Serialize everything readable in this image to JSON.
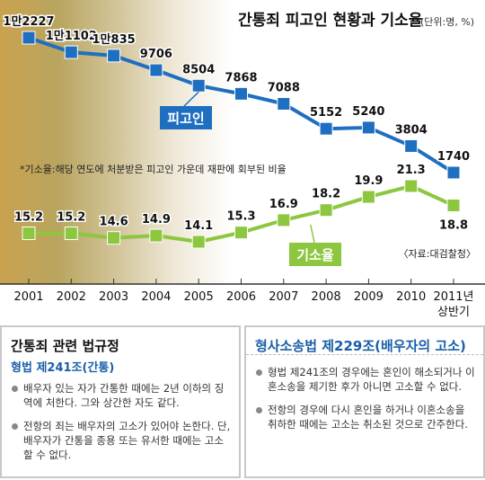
{
  "chart_data": {
    "type": "line",
    "title": "간통죄 피고인 현황과 기소율",
    "unit_note": "(단위:명, %)",
    "categories": [
      "2001",
      "2002",
      "2003",
      "2004",
      "2005",
      "2006",
      "2007",
      "2008",
      "2009",
      "2010",
      "2011년 상반기"
    ],
    "series": [
      {
        "name": "피고인",
        "color": "#1f6fc0",
        "values": [
          12227,
          11102,
          10835,
          9706,
          8504,
          7868,
          7088,
          5152,
          5240,
          3804,
          1740
        ],
        "labels": [
          "1만2227",
          "1만1102",
          "1만835",
          "9706",
          "8504",
          "7868",
          "7088",
          "5152",
          "5240",
          "3804",
          "1740"
        ]
      },
      {
        "name": "기소율",
        "color": "#8dc63f",
        "values": [
          15.2,
          15.2,
          14.6,
          14.9,
          14.1,
          15.3,
          16.9,
          18.2,
          19.9,
          21.3,
          18.8
        ],
        "labels": [
          "15.2",
          "15.2",
          "14.6",
          "14.9",
          "14.1",
          "15.3",
          "16.9",
          "18.2",
          "19.9",
          "21.3",
          "18.8"
        ]
      }
    ],
    "note": "*기소율:해당 연도에 처분받은 피고인 가운데 재판에 회부된 비율",
    "source": "〈자료:대검찰청〉",
    "grid": false
  },
  "panels": {
    "left": {
      "title": "간통죄 관련 법규정",
      "subtitle": "형법 제241조(간통)",
      "items": [
        "배우자 있는 자가 간통한 때에는 2년 이하의 징역에 처한다. 그와 상간한 자도 같다.",
        "전항의 죄는 배우자의 고소가 있어야 논한다. 단, 배우자가 간통을 종용 또는 유서한 때에는 고소할 수 없다."
      ]
    },
    "right": {
      "title": "형사소송법 제229조(배우자의 고소)",
      "items": [
        "형법 제241조의 경우에는 혼인이 해소되거나 이혼소송을 제기한 후가 아니면 고소할 수 없다.",
        "전항의 경우에 다시 혼인을 하거나 이혼소송을 취하한 때에는 고소는 취소된 것으로 간주한다."
      ]
    }
  }
}
